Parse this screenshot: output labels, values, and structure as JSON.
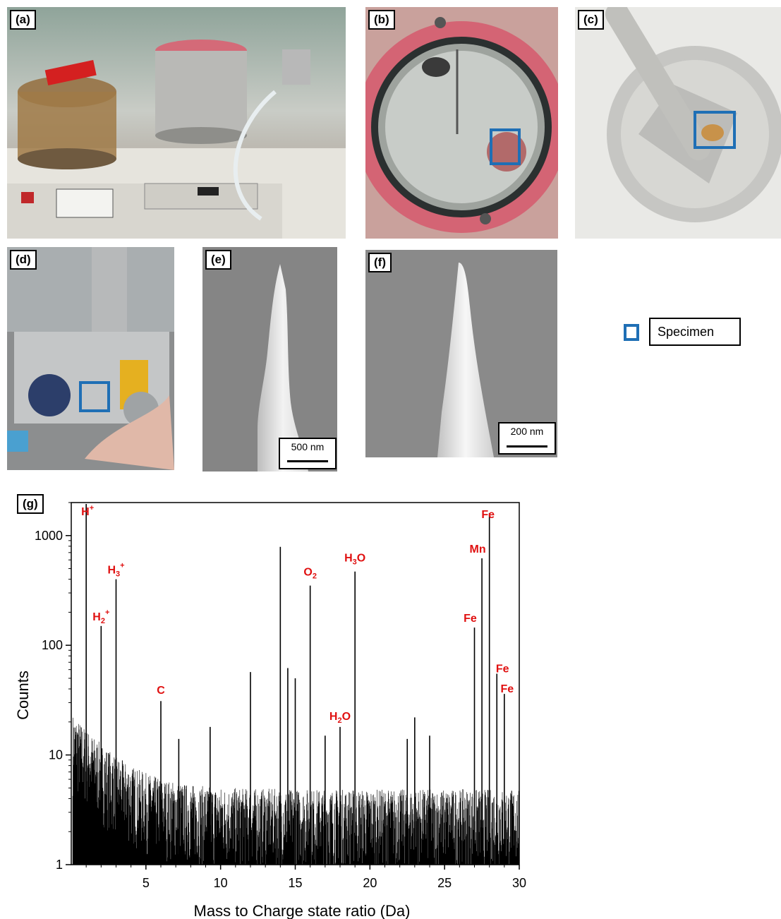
{
  "panels": {
    "a": "(a)",
    "b": "(b)",
    "c": "(c)",
    "d": "(d)",
    "e": "(e)",
    "f": "(f)",
    "g": "(g)"
  },
  "legend": {
    "label": "Specimen",
    "color": "#1f6fb5"
  },
  "scalebars": {
    "e": "500 nm",
    "f": "200 nm"
  },
  "colors": {
    "peak_label": "#e01010",
    "specimen_box": "#1f6fb5"
  },
  "chart_data": {
    "type": "line",
    "xlabel": "Mass to Charge state ratio (Da)",
    "ylabel": "Counts",
    "xlim": [
      0,
      30
    ],
    "ylim": [
      1,
      2000
    ],
    "yscale": "log",
    "xticks": [
      5,
      10,
      15,
      20,
      25,
      30
    ],
    "yticks": [
      1,
      10,
      100,
      1000
    ],
    "peaks": [
      {
        "x": 1.0,
        "y": 2000,
        "label": "H+"
      },
      {
        "x": 2.0,
        "y": 150,
        "label": "H2+"
      },
      {
        "x": 3.0,
        "y": 400,
        "label": "H3+"
      },
      {
        "x": 6.0,
        "y": 31,
        "label": "C"
      },
      {
        "x": 7.2,
        "y": 14
      },
      {
        "x": 9.3,
        "y": 18
      },
      {
        "x": 12.0,
        "y": 57
      },
      {
        "x": 14.0,
        "y": 790
      },
      {
        "x": 14.5,
        "y": 62
      },
      {
        "x": 15.0,
        "y": 50
      },
      {
        "x": 16.0,
        "y": 350,
        "label": "O2"
      },
      {
        "x": 17.0,
        "y": 15
      },
      {
        "x": 18.0,
        "y": 18,
        "label": "H2O"
      },
      {
        "x": 19.0,
        "y": 470,
        "label": "H3O"
      },
      {
        "x": 22.5,
        "y": 14
      },
      {
        "x": 23.0,
        "y": 22
      },
      {
        "x": 24.0,
        "y": 15
      },
      {
        "x": 27.0,
        "y": 145,
        "label": "Fe"
      },
      {
        "x": 27.5,
        "y": 620,
        "label": "Mn"
      },
      {
        "x": 28.0,
        "y": 1600,
        "label": "Fe"
      },
      {
        "x": 28.5,
        "y": 55,
        "label": "Fe"
      },
      {
        "x": 29.0,
        "y": 36,
        "label": "Fe"
      }
    ],
    "peak_labels": [
      {
        "text": "H",
        "sup": "+",
        "sub": ""
      },
      {
        "text": "H",
        "sup": "+",
        "sub": "2"
      },
      {
        "text": "H",
        "sup": "+",
        "sub": "3"
      },
      {
        "text": "C",
        "sup": "",
        "sub": ""
      },
      {
        "text": "O",
        "sup": "",
        "sub": "2"
      },
      {
        "text": "H",
        "sup": "",
        "sub": "2",
        "after": "O"
      },
      {
        "text": "H",
        "sup": "",
        "sub": "3",
        "after": "O"
      },
      {
        "text": "Fe",
        "sup": "",
        "sub": ""
      },
      {
        "text": "Mn",
        "sup": "",
        "sub": ""
      },
      {
        "text": "Fe",
        "sup": "",
        "sub": ""
      },
      {
        "text": "Fe",
        "sup": "",
        "sub": ""
      },
      {
        "text": "Fe",
        "sup": "",
        "sub": ""
      }
    ]
  }
}
